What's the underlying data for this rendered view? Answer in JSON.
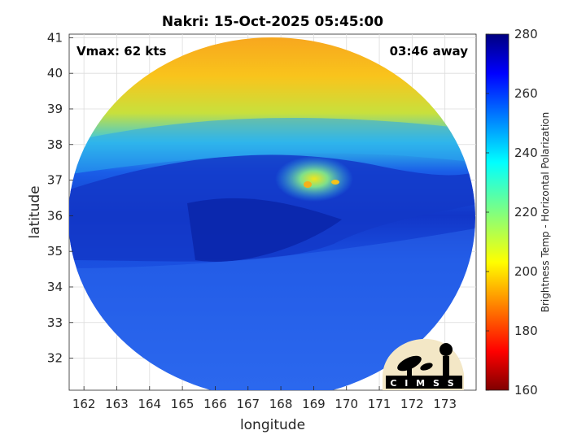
{
  "chart_data": {
    "type": "heatmap",
    "title": "Nakri: 15-Oct-2025 05:45:00",
    "xlabel": "longitude",
    "ylabel": "latitude",
    "xlim": [
      161.55,
      173.95
    ],
    "ylim": [
      31.1,
      41.1
    ],
    "xticks": [
      162,
      163,
      164,
      165,
      166,
      167,
      168,
      169,
      170,
      171,
      172,
      173
    ],
    "yticks": [
      32,
      33,
      34,
      35,
      36,
      37,
      38,
      39,
      40,
      41
    ],
    "grid": true,
    "annotations": {
      "left": "Vmax: 62 kts",
      "right": "03:46 away"
    },
    "colorbar": {
      "label": "Brightness Temp - Horizontal Polarization",
      "range": [
        160,
        280
      ],
      "ticks": [
        160,
        180,
        200,
        220,
        240,
        260,
        280
      ],
      "colormap": "jet"
    },
    "fields": [
      {
        "region": "north",
        "lat": [
          38.5,
          41
        ],
        "value": 200
      },
      {
        "region": "north band",
        "lat": [
          37.5,
          38.5
        ],
        "value": 230
      },
      {
        "region": "frontal band",
        "lat": [
          35.5,
          37.5
        ],
        "value": 265
      },
      {
        "region": "south",
        "lat": [
          31.1,
          35.5
        ],
        "value": 255
      }
    ],
    "center": {
      "lon": 169.3,
      "lat": 36.9,
      "value": 205
    }
  },
  "logo": {
    "name": "CIMSS",
    "text": "C I M S S"
  }
}
